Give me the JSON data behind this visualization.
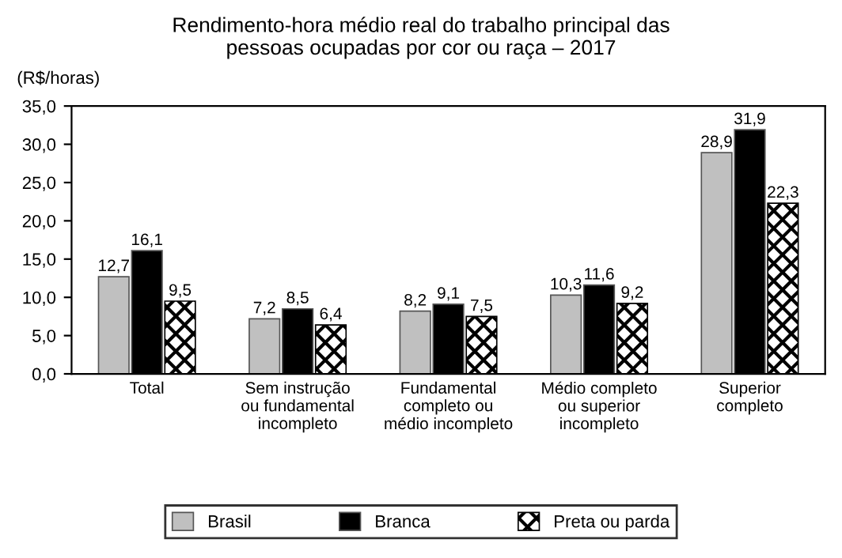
{
  "chart_data": {
    "type": "bar",
    "title": "Rendimento-hora médio real do trabalho principal das\npessoas ocupadas por cor ou raça – 2017",
    "ylabel": "(R$/horas)",
    "categories": [
      "Total",
      "Sem instrução\nou fundamental\nincompleto",
      "Fundamental\ncompleto ou\nmédio incompleto",
      "Médio completo\nou superior\nincompleto",
      "Superior\ncompleto"
    ],
    "series": [
      {
        "name": "Brasil",
        "color": "#c0c0c0",
        "values": [
          12.7,
          7.2,
          8.2,
          10.3,
          28.9
        ],
        "value_labels": [
          "12,7",
          "7,2",
          "8,2",
          "10,3",
          "28,9"
        ]
      },
      {
        "name": "Branca",
        "color": "#000000",
        "values": [
          16.1,
          8.5,
          9.1,
          11.6,
          31.9
        ],
        "value_labels": [
          "16,1",
          "8,5",
          "9,1",
          "11,6",
          "31,9"
        ]
      },
      {
        "name": "Preta ou parda",
        "color": "#000000",
        "values": [
          9.5,
          6.4,
          7.5,
          9.2,
          22.3
        ],
        "value_labels": [
          "9,5",
          "6,4",
          "7,5",
          "9,2",
          "22,3"
        ]
      }
    ],
    "ylim": [
      0,
      35
    ],
    "yticks": [
      {
        "value": 0,
        "label": "0,0"
      },
      {
        "value": 5,
        "label": "5,0"
      },
      {
        "value": 10,
        "label": "10,0"
      },
      {
        "value": 15,
        "label": "15,0"
      },
      {
        "value": 20,
        "label": "20,0"
      },
      {
        "value": 25,
        "label": "25,0"
      },
      {
        "value": 30,
        "label": "30,0"
      },
      {
        "value": 35,
        "label": "35,0"
      }
    ],
    "grid": false,
    "legend": "bottom"
  }
}
